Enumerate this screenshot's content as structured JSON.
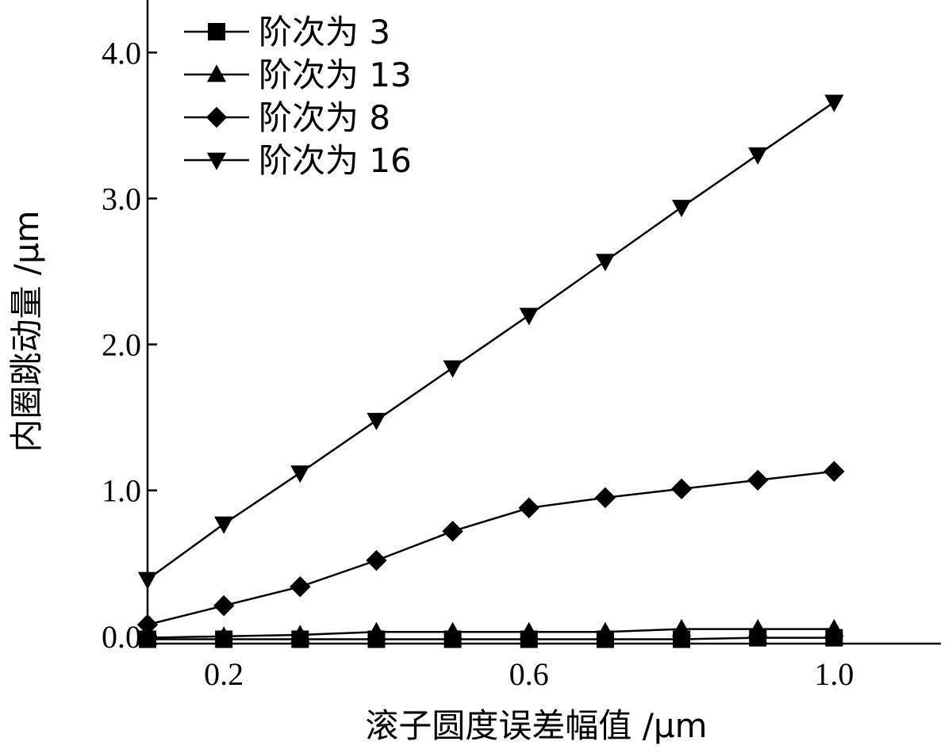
{
  "chart_data": {
    "type": "line",
    "xlabel": "滚子圆度误差幅值 /μm",
    "ylabel": "内圈跳动量 /μm",
    "xlim": [
      0.1,
      1.14
    ],
    "ylim": [
      -0.05,
      4.36
    ],
    "xticks": [
      0.2,
      0.6,
      1.0
    ],
    "xtick_labels": [
      "0.2",
      "0.6",
      "1.0"
    ],
    "yticks": [
      0.0,
      1.0,
      2.0,
      3.0,
      4.0
    ],
    "ytick_labels": [
      "0.0",
      "1.0",
      "2.0",
      "3.0",
      "4.0"
    ],
    "grid": false,
    "legend_position": "top-left",
    "x": [
      0.1,
      0.2,
      0.3,
      0.4,
      0.5,
      0.6,
      0.7,
      0.8,
      0.9,
      1.0
    ],
    "series": [
      {
        "name": "阶次为 3",
        "marker": "square",
        "values": [
          -0.02,
          -0.02,
          -0.02,
          -0.02,
          -0.02,
          -0.02,
          -0.02,
          -0.02,
          -0.01,
          -0.01
        ]
      },
      {
        "name": "阶次为 13",
        "marker": "triangle-up",
        "values": [
          -0.01,
          0.0,
          0.01,
          0.03,
          0.03,
          0.03,
          0.03,
          0.05,
          0.05,
          0.05
        ]
      },
      {
        "name": "阶次为 8",
        "marker": "diamond",
        "values": [
          0.08,
          0.21,
          0.34,
          0.52,
          0.72,
          0.88,
          0.95,
          1.01,
          1.07,
          1.13
        ]
      },
      {
        "name": "阶次为 16",
        "marker": "triangle-down",
        "values": [
          0.39,
          0.77,
          1.12,
          1.48,
          1.84,
          2.2,
          2.57,
          2.94,
          3.3,
          3.66
        ]
      }
    ]
  }
}
